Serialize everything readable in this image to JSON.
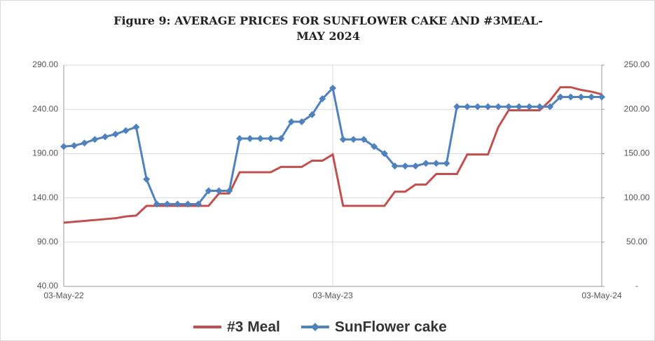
{
  "chart_data": {
    "type": "line",
    "title": "Figure 9: AVERAGE PRICES FOR SUNFLOWER CAKE AND #3MEAL- MAY 2024",
    "categories": [
      "03-May-22",
      null,
      null,
      null,
      null,
      null,
      null,
      null,
      null,
      null,
      null,
      null,
      null,
      null,
      null,
      null,
      null,
      null,
      null,
      null,
      null,
      null,
      null,
      null,
      null,
      null,
      "03-May-23",
      null,
      null,
      null,
      null,
      null,
      null,
      null,
      null,
      null,
      null,
      null,
      null,
      null,
      null,
      null,
      null,
      null,
      null,
      null,
      null,
      null,
      null,
      null,
      null,
      null,
      "03-May-24"
    ],
    "series": [
      {
        "name": "#3 Meal",
        "color": "#c0504d",
        "axis": "y",
        "values": [
          112,
          113,
          114,
          115,
          116,
          117,
          119,
          120,
          131,
          131,
          131,
          131,
          131,
          131,
          131,
          145,
          145,
          169,
          169,
          169,
          169,
          175,
          175,
          175,
          182,
          182,
          189,
          131,
          131,
          131,
          131,
          131,
          147,
          147,
          155,
          155,
          167,
          167,
          167,
          189,
          189,
          189,
          220,
          239,
          239,
          239,
          239,
          250,
          265,
          265,
          262,
          260,
          257
        ]
      },
      {
        "name": "SunFlower cake",
        "color": "#4f81bd",
        "axis": "y2",
        "values": [
          158,
          159,
          162,
          166,
          169,
          172,
          176,
          180,
          121,
          93,
          93,
          93,
          93,
          93,
          108,
          108,
          108,
          167,
          167,
          167,
          167,
          167,
          186,
          186,
          194,
          212,
          224,
          166,
          166,
          166,
          158,
          150,
          136,
          136,
          136,
          139,
          139,
          139,
          203,
          203,
          203,
          203,
          203,
          203,
          203,
          203,
          203,
          203,
          214,
          214,
          214,
          214,
          214
        ]
      }
    ],
    "ylim": [
      40,
      290
    ],
    "yticks": [
      {
        "value": 40,
        "label": "40.00"
      },
      {
        "value": 90,
        "label": "90.00"
      },
      {
        "value": 140,
        "label": "140.00"
      },
      {
        "value": 190,
        "label": "190.00"
      },
      {
        "value": 240,
        "label": "240.00"
      },
      {
        "value": 290,
        "label": "290.00"
      }
    ],
    "y2lim": [
      0,
      250
    ],
    "y2ticks": [
      {
        "value": 0,
        "label": "-"
      },
      {
        "value": 50,
        "label": "50.00"
      },
      {
        "value": 100,
        "label": "100.00"
      },
      {
        "value": 150,
        "label": "150.00"
      },
      {
        "value": 200,
        "label": "200.00"
      },
      {
        "value": 250,
        "label": "250.00"
      }
    ],
    "grid": true
  }
}
